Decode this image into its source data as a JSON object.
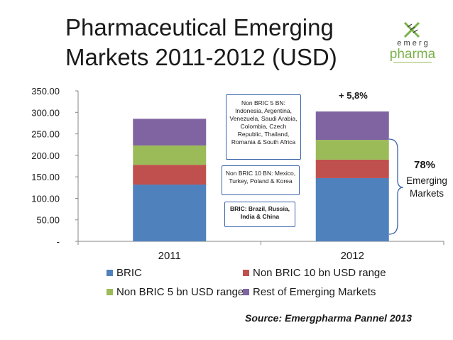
{
  "title": "Pharmaceutical Emerging Markets 2011-2012 (USD)",
  "logo": {
    "top_text": "e m e r g",
    "bottom_text": "pharma",
    "icon": "double-helix-cross-icon",
    "colors": {
      "green": "#7ab24a",
      "dark": "#3a3a3a"
    }
  },
  "chart_data": {
    "type": "bar",
    "stacked": true,
    "categories": [
      "2011",
      "2012"
    ],
    "series": [
      {
        "name": "BRIC",
        "color": "#4f81bd",
        "values": [
          132,
          147
        ]
      },
      {
        "name": "Non BRIC 10 bn USD range",
        "color": "#c0504d",
        "values": [
          46,
          43
        ]
      },
      {
        "name": "Non BRIC 5 bn USD range",
        "color": "#9bbb59",
        "values": [
          45,
          46
        ]
      },
      {
        "name": "Rest of Emerging Markets",
        "color": "#8064a2",
        "values": [
          62,
          66
        ]
      }
    ],
    "ylim": [
      0,
      350
    ],
    "yticks": [
      "-",
      "50.00",
      "100.00",
      "150.00",
      "200.00",
      "250.00",
      "300.00",
      "350.00"
    ],
    "grid": false,
    "legend_position": "bottom"
  },
  "annotations": {
    "growth": "+ 5,8%",
    "share_pct": "78%",
    "share_label_1": "Emerging",
    "share_label_2": "Markets",
    "note_non_bric_5": "Non BRIC 5 BN: Indonesia, Argentina, Venezuela, Saudi Arabia, Colombia, Czech Republic, Thailand, Romania & South Africa",
    "note_non_bric_10": "Non BRIC 10 BN: Mexico, Turkey, Poland & Korea",
    "note_bric": "BRIC: Brazil, Russia, India & China"
  },
  "source": "Source: Emergpharma Pannel 2013"
}
